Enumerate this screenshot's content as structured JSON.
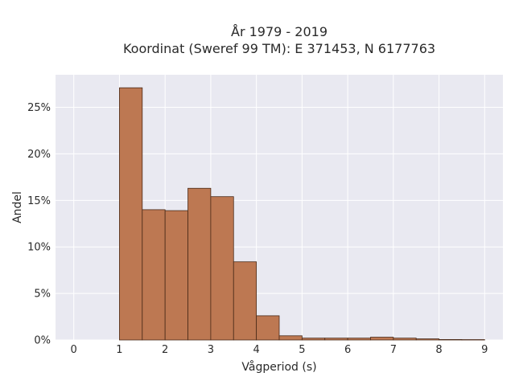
{
  "chart_data": {
    "type": "bar",
    "title_line1": "År 1979 - 2019",
    "title_line2": "Koordinat (Sweref 99 TM): E 371453, N 6177763",
    "xlabel": "Vågperiod (s)",
    "ylabel": "Andel",
    "bin_width": 0.5,
    "bins": [
      {
        "start": 1.0,
        "value": 27.1
      },
      {
        "start": 1.5,
        "value": 14.0
      },
      {
        "start": 2.0,
        "value": 13.9
      },
      {
        "start": 2.5,
        "value": 16.3
      },
      {
        "start": 3.0,
        "value": 15.4
      },
      {
        "start": 3.5,
        "value": 8.4
      },
      {
        "start": 4.0,
        "value": 2.6
      },
      {
        "start": 4.5,
        "value": 0.45
      },
      {
        "start": 5.0,
        "value": 0.2
      },
      {
        "start": 5.5,
        "value": 0.2
      },
      {
        "start": 6.0,
        "value": 0.2
      },
      {
        "start": 6.5,
        "value": 0.3
      },
      {
        "start": 7.0,
        "value": 0.2
      },
      {
        "start": 7.5,
        "value": 0.12
      },
      {
        "start": 8.0,
        "value": 0.05
      },
      {
        "start": 8.5,
        "value": 0.04
      }
    ],
    "xlim": [
      -0.4,
      9.4
    ],
    "ylim": [
      0,
      28.5
    ],
    "xticks": [
      0,
      1,
      2,
      3,
      4,
      5,
      6,
      7,
      8,
      9
    ],
    "xtick_labels": [
      "0",
      "1",
      "2",
      "3",
      "4",
      "5",
      "6",
      "7",
      "8",
      "9"
    ],
    "yticks": [
      0,
      5,
      10,
      15,
      20,
      25
    ],
    "ytick_labels": [
      "0%",
      "5%",
      "10%",
      "15%",
      "20%",
      "25%"
    ],
    "grid": true,
    "colors": {
      "bar_fill": "#bd7852",
      "bar_edge": "#4a2a18",
      "plot_background": "#e9e9f1",
      "grid": "#ffffff"
    }
  }
}
